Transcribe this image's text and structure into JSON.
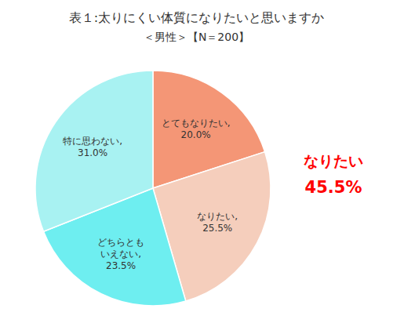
{
  "chart_data": {
    "type": "pie",
    "title": "表１:太りにくい体質になりたいと思いますか",
    "subtitle": "＜男性＞【N＝200】",
    "categories": [
      "とてもなりたい,\n20.0%",
      "なりたい,\n25.5%",
      "どちらとも\nいえない,\n23.5%",
      "特に思わない,\n31.0%"
    ],
    "values": [
      20.0,
      25.5,
      23.5,
      31.0
    ],
    "colors": [
      "#F49676",
      "#F5CEBC",
      "#6EEEF0",
      "#A8F2F2"
    ],
    "annotations": [
      {
        "text": "なりたい",
        "color": "#FF0000"
      },
      {
        "text": "45.5%",
        "color": "#FF0000"
      }
    ]
  }
}
